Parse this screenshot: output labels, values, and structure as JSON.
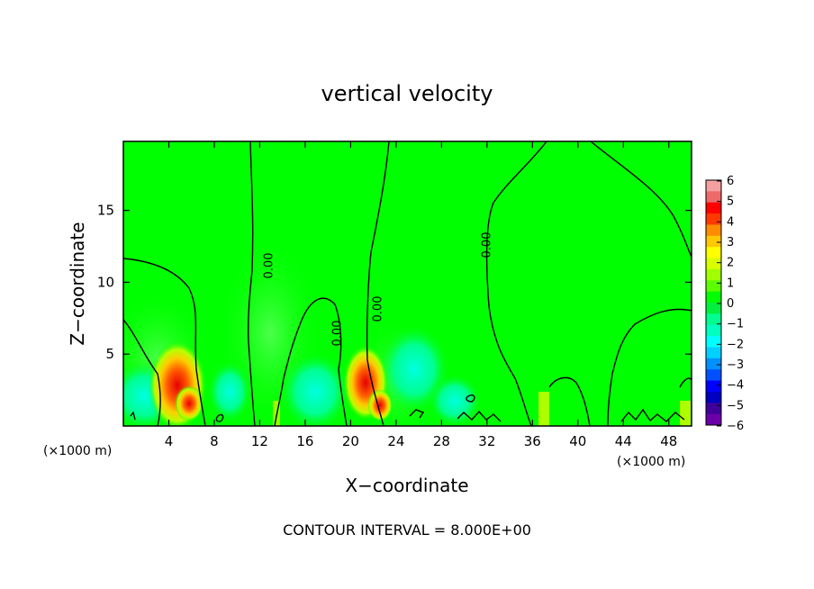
{
  "chart_data": {
    "type": "heatmap",
    "title": "vertical velocity",
    "xlabel": "X−coordinate",
    "ylabel": "Z−coordinate",
    "x_unit": "(×1000 m)",
    "y_unit": "(×1000 m)",
    "xlim": [
      0,
      50
    ],
    "ylim": [
      0,
      19.8
    ],
    "x_ticks": [
      4,
      8,
      12,
      16,
      20,
      24,
      28,
      32,
      36,
      40,
      44,
      48
    ],
    "x_tick_labels": [
      "4",
      "8",
      "12",
      "16",
      "20",
      "24",
      "28",
      "32",
      "36",
      "40",
      "44",
      "48"
    ],
    "y_ticks": [
      5,
      10,
      15
    ],
    "y_tick_labels": [
      "5",
      "10",
      "15"
    ],
    "footer": "CONTOUR INTERVAL = 8.000E+00",
    "contour_label": "0.00",
    "colorbar": {
      "ticks": [
        6,
        5,
        4,
        3,
        2,
        1,
        0,
        -1,
        -2,
        -3,
        -4,
        -5,
        -6
      ],
      "tick_labels": [
        "6",
        "5",
        "4",
        "3",
        "2",
        "1",
        "0",
        "−1",
        "−2",
        "−3",
        "−4",
        "−5",
        "−6"
      ],
      "colors": [
        "#f4a0a0",
        "#ee6a6a",
        "#ff0000",
        "#ff3a00",
        "#ff8c00",
        "#ffc800",
        "#ffff00",
        "#d8ff00",
        "#a0ff00",
        "#5cff00",
        "#00ff00",
        "#00f040",
        "#00ff90",
        "#00ffc0",
        "#00ffff",
        "#00d0ff",
        "#0090ff",
        "#0050ff",
        "#0000ff",
        "#0000c0",
        "#40009a",
        "#6a00a8"
      ]
    },
    "background_value": 0,
    "features": [
      {
        "kind": "updraft",
        "x": 4.6,
        "z": 3.2,
        "max": 4
      },
      {
        "kind": "updraft",
        "x": 21.3,
        "z": 3.0,
        "max": 3.5
      },
      {
        "kind": "downdraft",
        "x": 2.0,
        "z": 2.0,
        "min": -2
      },
      {
        "kind": "downdraft",
        "x": 17.0,
        "z": 2.0,
        "min": -2
      },
      {
        "kind": "downdraft",
        "x": 25.5,
        "z": 4.0,
        "min": -1.5
      }
    ]
  }
}
